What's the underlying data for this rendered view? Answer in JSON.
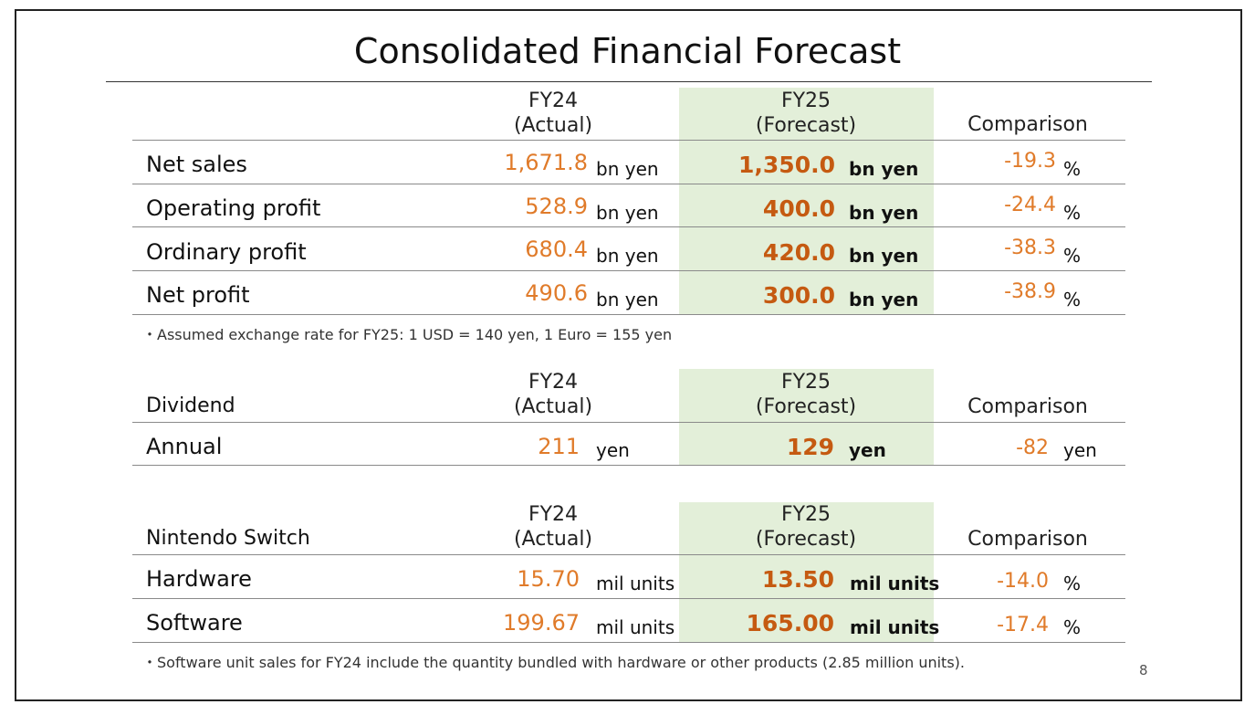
{
  "title": "Consolidated Financial Forecast",
  "page_number": "8",
  "colors": {
    "actual_value": "#e07b2a",
    "forecast_value": "#c55a11",
    "forecast_bg": "#e3efd9"
  },
  "financial": {
    "col_actual": [
      "FY24",
      "(Actual)"
    ],
    "col_forecast": [
      "FY25",
      "(Forecast)"
    ],
    "col_comparison": "Comparison",
    "rows": [
      {
        "label": "Net sales",
        "actual": "1,671.8",
        "actual_unit": "bn yen",
        "forecast": "1,350.0",
        "forecast_unit": "bn yen",
        "comparison": "-19.3",
        "comparison_unit": "%"
      },
      {
        "label": "Operating profit",
        "actual": "528.9",
        "actual_unit": "bn yen",
        "forecast": "400.0",
        "forecast_unit": "bn yen",
        "comparison": "-24.4",
        "comparison_unit": "%"
      },
      {
        "label": "Ordinary profit",
        "actual": "680.4",
        "actual_unit": "bn yen",
        "forecast": "420.0",
        "forecast_unit": "bn yen",
        "comparison": "-38.3",
        "comparison_unit": "%"
      },
      {
        "label": "Net profit",
        "actual": "490.6",
        "actual_unit": "bn yen",
        "forecast": "300.0",
        "forecast_unit": "bn yen",
        "comparison": "-38.9",
        "comparison_unit": "%"
      }
    ],
    "note": "・Assumed exchange rate for FY25: 1 USD = 140 yen, 1 Euro = 155 yen"
  },
  "dividend": {
    "section_label": "Dividend",
    "col_actual": [
      "FY24",
      "(Actual)"
    ],
    "col_forecast": [
      "FY25",
      "(Forecast)"
    ],
    "col_comparison": "Comparison",
    "rows": [
      {
        "label": "Annual",
        "actual": "211",
        "actual_unit": "yen",
        "forecast": "129",
        "forecast_unit": "yen",
        "comparison": "-82",
        "comparison_unit": "yen"
      }
    ]
  },
  "switch": {
    "section_label": "Nintendo Switch",
    "col_actual": [
      "FY24",
      "(Actual)"
    ],
    "col_forecast": [
      "FY25",
      "(Forecast)"
    ],
    "col_comparison": "Comparison",
    "rows": [
      {
        "label": "Hardware",
        "actual": "15.70",
        "actual_unit": "mil units",
        "forecast": "13.50",
        "forecast_unit": "mil units",
        "comparison": "-14.0",
        "comparison_unit": "%"
      },
      {
        "label": "Software",
        "actual": "199.67",
        "actual_unit": "mil units",
        "forecast": "165.00",
        "forecast_unit": "mil units",
        "comparison": "-17.4",
        "comparison_unit": "%"
      }
    ],
    "note": "・Software unit sales for FY24 include the quantity bundled with hardware or other products (2.85 million units)."
  }
}
